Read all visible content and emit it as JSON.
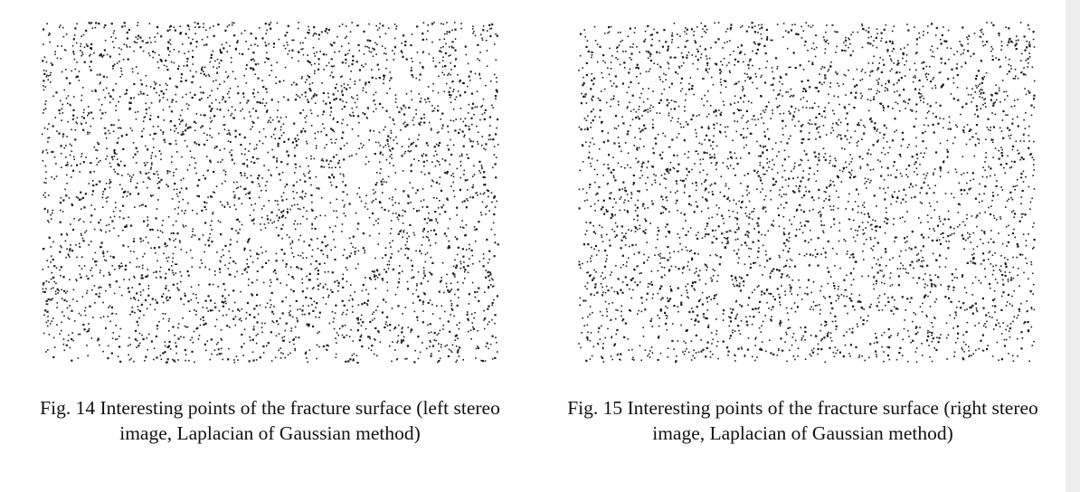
{
  "figures": [
    {
      "caption_line1": "Fig. 14 Interesting points of the fracture surface (left stereo",
      "caption_line2": "image, Laplacian of Gaussian method)"
    },
    {
      "caption_line1": "Fig. 15 Interesting points of the fracture surface (right stereo",
      "caption_line2": "image, Laplacian of Gaussian method)"
    }
  ],
  "colors": {
    "point": "#1a1a1a",
    "background": "#ffffff"
  }
}
